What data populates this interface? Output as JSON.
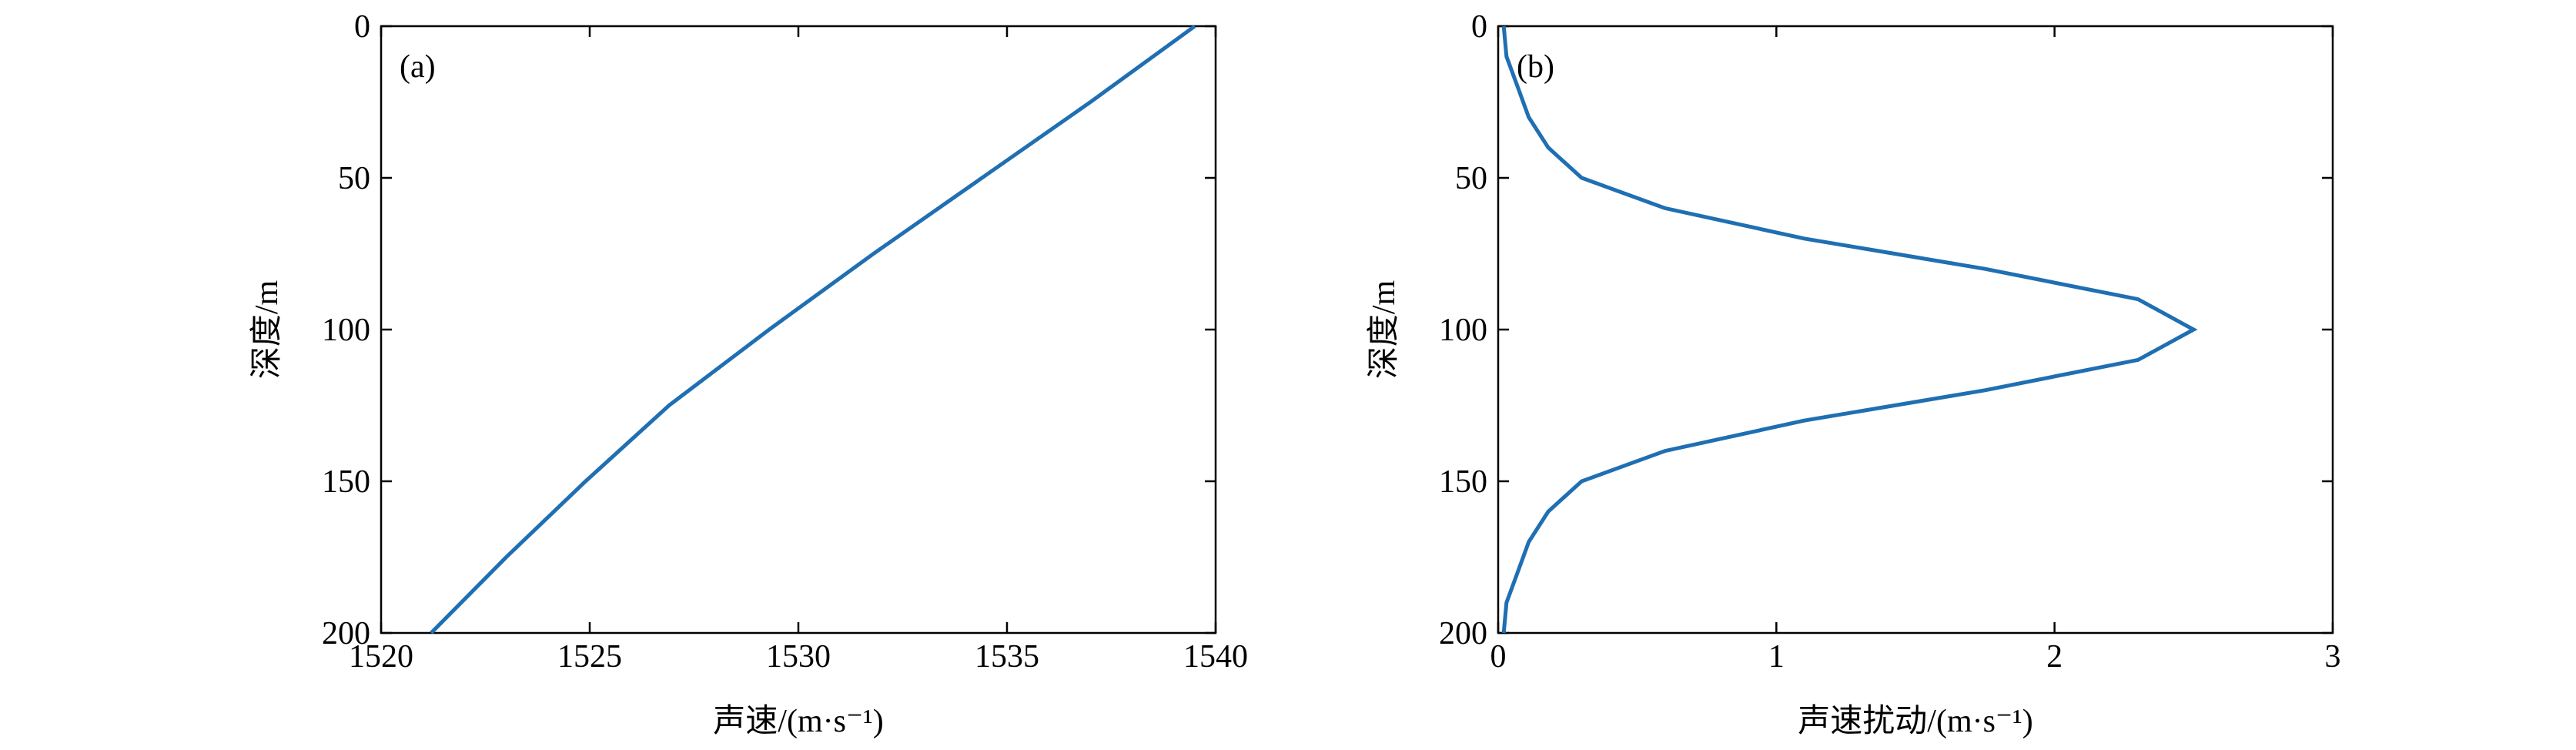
{
  "chart_data": [
    {
      "type": "line",
      "annotation": "(a)",
      "xlabel": "声速/(m·s⁻¹)",
      "ylabel": "深度/m",
      "xlim": [
        1520,
        1540
      ],
      "xticks": [
        1520,
        1525,
        1530,
        1535,
        1540
      ],
      "ylim": [
        200,
        0
      ],
      "yticks": [
        0,
        50,
        100,
        150,
        200
      ],
      "series": [
        {
          "color": "#1f6fb2",
          "x": [
            1539.5,
            1537.0,
            1534.4,
            1531.8,
            1529.3,
            1526.9,
            1524.9,
            1523.0,
            1521.2
          ],
          "y": [
            0,
            25,
            50,
            75,
            100,
            125,
            150,
            175,
            200
          ]
        }
      ]
    },
    {
      "type": "line",
      "annotation": "(b)",
      "xlabel": "声速扰动/(m·s⁻¹)",
      "ylabel": "深度/m",
      "xlim": [
        0,
        3
      ],
      "xticks": [
        0,
        1,
        2,
        3
      ],
      "ylim": [
        200,
        0
      ],
      "yticks": [
        0,
        50,
        100,
        150,
        200
      ],
      "series": [
        {
          "color": "#1f6fb2",
          "x": [
            0.02,
            0.03,
            0.07,
            0.11,
            0.18,
            0.3,
            0.6,
            1.1,
            1.75,
            2.3,
            2.5,
            2.3,
            1.75,
            1.1,
            0.6,
            0.3,
            0.18,
            0.11,
            0.07,
            0.03,
            0.02
          ],
          "y": [
            0,
            10,
            20,
            30,
            40,
            50,
            60,
            70,
            80,
            90,
            100,
            110,
            120,
            130,
            140,
            150,
            160,
            170,
            180,
            190,
            200
          ]
        }
      ]
    }
  ]
}
